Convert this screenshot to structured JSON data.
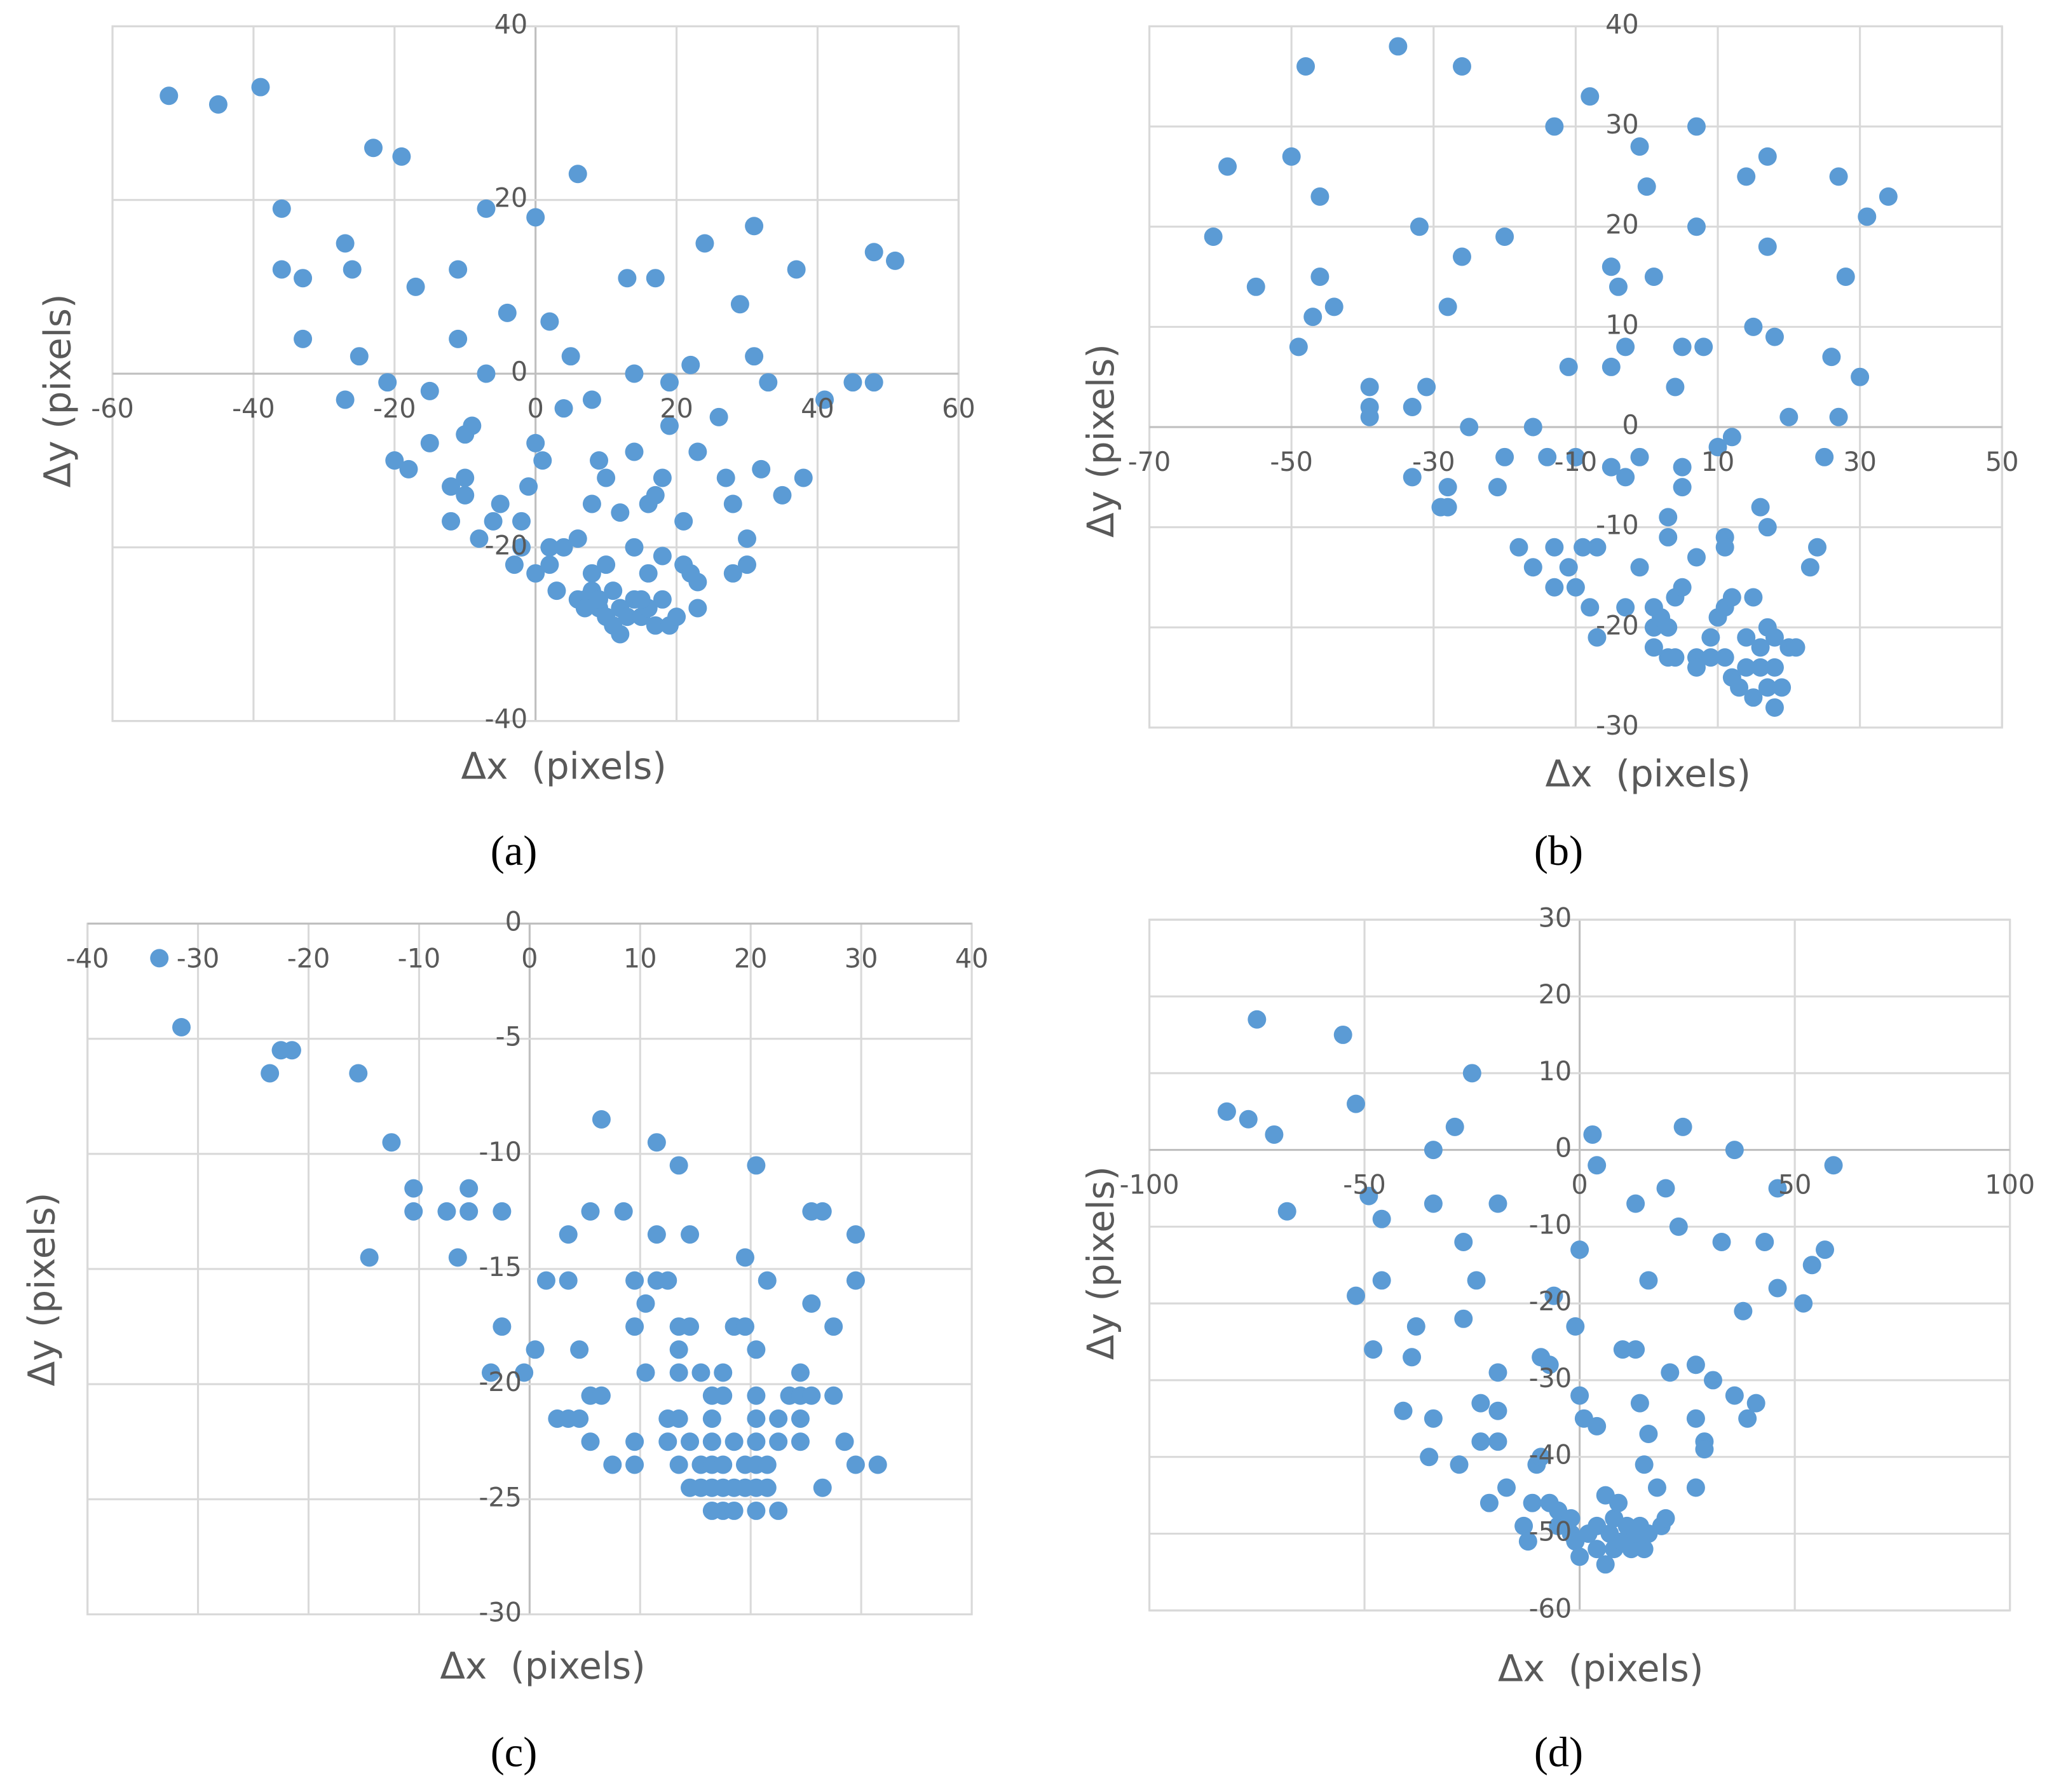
{
  "chart_data": [
    {
      "type": "scatter",
      "label": "(a)",
      "x_label": "Δx  (pixels)",
      "y_label": "Δy (pixels)",
      "color": "#5b9bd5",
      "grid": true,
      "xlim": [
        -60,
        60
      ],
      "xticks": [
        -60,
        -40,
        -20,
        0,
        20,
        40,
        60
      ],
      "ylim": [
        -40,
        40
      ],
      "yticks": [
        -40,
        -20,
        0,
        20,
        40
      ],
      "x": [
        -52,
        -45,
        -39,
        -36,
        -36,
        -33,
        -33,
        -27,
        -26,
        -25,
        -27,
        -23,
        -19,
        -17,
        -21,
        -15,
        -20,
        -18,
        -15,
        -11,
        -11,
        -7,
        -4,
        -7,
        -9,
        -10,
        -12,
        -10,
        -10,
        -12,
        -5,
        -6,
        -8,
        -3,
        -2,
        -1,
        -2,
        0,
        2,
        5,
        6,
        0,
        1,
        4,
        8,
        2,
        0,
        2,
        3,
        4,
        6,
        7,
        8,
        9,
        10,
        8,
        9,
        10,
        12,
        13,
        14,
        17,
        14,
        14,
        16,
        16,
        17,
        18,
        18,
        19,
        19,
        21,
        22,
        21,
        22,
        23,
        23,
        23,
        24,
        26,
        27,
        28,
        28,
        29,
        30,
        30,
        31,
        31,
        33,
        32,
        35,
        37,
        38,
        41,
        45,
        48,
        48,
        51,
        6,
        7,
        8,
        9,
        10,
        11,
        11,
        12,
        12,
        13,
        14,
        15,
        16,
        17,
        18,
        19,
        20,
        15
      ],
      "values": [
        32,
        31,
        33,
        19,
        12,
        11,
        4,
        15,
        12,
        2,
        -3,
        26,
        25,
        10,
        -1,
        -2,
        -10,
        -11,
        -8,
        12,
        4,
        19,
        7,
        0,
        -6,
        -7,
        -13,
        -12,
        -14,
        -17,
        -15,
        -17,
        -19,
        -22,
        -17,
        -13,
        -20,
        18,
        6,
        2,
        23,
        -8,
        -10,
        -4,
        -3,
        -20,
        -23,
        -22,
        -25,
        -20,
        -19,
        -26,
        -15,
        -10,
        -12,
        -23,
        -27,
        -22,
        -16,
        11,
        -9,
        11,
        0,
        -20,
        -23,
        -15,
        -14,
        -12,
        -21,
        -1,
        -6,
        -17,
        1,
        -22,
        -23,
        -9,
        -24,
        -27,
        15,
        -5,
        -12,
        -15,
        -23,
        8,
        -19,
        -22,
        2,
        17,
        -1,
        -11,
        -14,
        12,
        -12,
        -3,
        -1,
        -1,
        14,
        13,
        -26,
        -27,
        -25,
        -26,
        -28,
        -25,
        -29,
        -27,
        -30,
        -28,
        -26,
        -28,
        -27,
        -29,
        -26,
        -29,
        -28,
        -26
      ]
    },
    {
      "type": "scatter",
      "label": "(b)",
      "x_label": "Δx  (pixels)",
      "y_label": "Δy (pixels)",
      "color": "#5b9bd5",
      "grid": true,
      "xlim": [
        -70,
        50
      ],
      "xticks": [
        -70,
        -50,
        -30,
        -10,
        10,
        30,
        50
      ],
      "ylim": [
        -30,
        40
      ],
      "yticks": [
        -30,
        -20,
        -10,
        0,
        10,
        20,
        30,
        40
      ],
      "x": [
        -61,
        -59,
        -55,
        -50,
        -48,
        -49,
        -47,
        -46,
        -46,
        -44,
        -39,
        -39,
        -39,
        -35,
        -33,
        -33,
        -32,
        -31,
        -29,
        -28,
        -28,
        -28,
        -26,
        -26,
        -25,
        -21,
        -20,
        -20,
        -18,
        -16,
        -16,
        -14,
        -13,
        -13,
        -13,
        -11,
        -11,
        -10,
        -10,
        -9,
        -8,
        -7,
        -8,
        -7,
        -5,
        -5,
        -4,
        -5,
        -3,
        -3,
        -3,
        -1,
        -1,
        -1,
        0,
        1,
        1,
        1,
        1,
        2,
        3,
        3,
        3,
        3,
        4,
        4,
        5,
        5,
        5,
        5,
        4,
        7,
        7,
        7,
        7,
        7,
        8,
        9,
        9,
        10,
        10,
        11,
        11,
        11,
        11,
        12,
        12,
        12,
        13,
        14,
        14,
        14,
        15,
        15,
        15,
        16,
        16,
        16,
        17,
        17,
        17,
        17,
        17,
        18,
        18,
        18,
        18,
        19,
        20,
        20,
        21,
        23,
        24,
        25,
        26,
        27,
        27,
        28,
        30,
        31,
        34
      ],
      "values": [
        19,
        26,
        14,
        27,
        36,
        8,
        11,
        23,
        15,
        12,
        4,
        2,
        1,
        38,
        2,
        -5,
        20,
        4,
        -8,
        -8,
        -6,
        12,
        36,
        17,
        0,
        -6,
        -3,
        19,
        -12,
        0,
        -14,
        -3,
        -12,
        -16,
        30,
        6,
        -14,
        -3,
        -16,
        -12,
        33,
        -12,
        -18,
        -21,
        16,
        6,
        14,
        -4,
        8,
        -5,
        -18,
        28,
        -3,
        -14,
        24,
        15,
        -18,
        -20,
        -22,
        -19,
        -9,
        -11,
        -20,
        -23,
        4,
        -17,
        -16,
        8,
        -6,
        -4,
        -23,
        30,
        20,
        -13,
        -23,
        -24,
        8,
        -23,
        -21,
        -2,
        -19,
        -11,
        -12,
        -18,
        -23,
        -1,
        -17,
        -25,
        -26,
        25,
        -24,
        -21,
        10,
        -17,
        -27,
        -24,
        -22,
        -8,
        27,
        18,
        -10,
        -20,
        -26,
        9,
        -21,
        -24,
        -28,
        -26,
        1,
        -22,
        -22,
        -14,
        -12,
        -3,
        7,
        25,
        1,
        15,
        5,
        21,
        23
      ]
    },
    {
      "type": "scatter",
      "label": "(c)",
      "x_label": "Δx  (pixels)",
      "y_label": "Δy (pixels)",
      "color": "#5b9bd5",
      "grid": true,
      "xlim": [
        -40,
        40
      ],
      "xticks": [
        -40,
        -30,
        -20,
        -10,
        0,
        10,
        20,
        30,
        40
      ],
      "ylim": [
        -30,
        0
      ],
      "yticks": [
        -30,
        -25,
        -20,
        -15,
        -10,
        -5,
        0
      ],
      "x": [
        -33.5,
        -31.5,
        -23.5,
        -22.5,
        -21.5,
        -15.5,
        -14.5,
        -12.5,
        -10.5,
        -10.5,
        -7.5,
        -6.5,
        -5.5,
        -5.5,
        -2.5,
        -2.5,
        -3.5,
        -0.5,
        0.5,
        1.5,
        2.5,
        3.5,
        3.5,
        3.5,
        4.5,
        4.5,
        5.5,
        5.5,
        5.5,
        6.5,
        6.5,
        7.5,
        8.5,
        9.5,
        9.5,
        9.5,
        9.5,
        10.5,
        10.5,
        11.5,
        11.5,
        11.5,
        12.5,
        12.5,
        12.5,
        13.5,
        13.5,
        13.5,
        13.5,
        13.5,
        13.5,
        14.5,
        14.5,
        14.5,
        14.5,
        15.5,
        15.5,
        15.5,
        16.5,
        16.5,
        16.5,
        16.5,
        16.5,
        16.5,
        17.5,
        17.5,
        17.5,
        17.5,
        17.5,
        18.5,
        18.5,
        18.5,
        18.5,
        19.5,
        19.5,
        19.5,
        19.5,
        20.5,
        20.5,
        20.5,
        20.5,
        20.5,
        20.5,
        20.5,
        20.5,
        21.5,
        21.5,
        21.5,
        22.5,
        22.5,
        22.5,
        23.5,
        24.5,
        24.5,
        24.5,
        24.5,
        25.5,
        25.5,
        25.5,
        26.5,
        26.5,
        27.5,
        27.5,
        28.5,
        29.5,
        29.5,
        29.5,
        31.5
      ],
      "values": [
        -1.5,
        -4.5,
        -6.5,
        -5.5,
        -5.5,
        -6.5,
        -14.5,
        -9.5,
        -11.5,
        -12.5,
        -12.5,
        -14.5,
        -11.5,
        -12.5,
        -12.5,
        -17.5,
        -19.5,
        -19.5,
        -18.5,
        -15.5,
        -21.5,
        -13.5,
        -15.5,
        -21.5,
        -18.5,
        -21.5,
        -12.5,
        -20.5,
        -22.5,
        -8.5,
        -20.5,
        -23.5,
        -12.5,
        -15.5,
        -17.5,
        -22.5,
        -23.5,
        -16.5,
        -19.5,
        -9.5,
        -13.5,
        -15.5,
        -15.5,
        -21.5,
        -22.5,
        -10.5,
        -17.5,
        -18.5,
        -19.5,
        -21.5,
        -23.5,
        -13.5,
        -17.5,
        -22.5,
        -24.5,
        -19.5,
        -23.5,
        -24.5,
        -20.5,
        -21.5,
        -22.5,
        -23.5,
        -24.5,
        -25.5,
        -19.5,
        -20.5,
        -23.5,
        -24.5,
        -25.5,
        -17.5,
        -22.5,
        -24.5,
        -25.5,
        -14.5,
        -17.5,
        -23.5,
        -24.5,
        -10.5,
        -18.5,
        -20.5,
        -21.5,
        -22.5,
        -23.5,
        -24.5,
        -25.5,
        -15.5,
        -23.5,
        -24.5,
        -21.5,
        -22.5,
        -25.5,
        -20.5,
        -19.5,
        -20.5,
        -21.5,
        -22.5,
        -12.5,
        -16.5,
        -20.5,
        -12.5,
        -24.5,
        -17.5,
        -20.5,
        -22.5,
        -13.5,
        -15.5,
        -23.5,
        -23.5
      ]
    },
    {
      "type": "scatter",
      "label": "(d)",
      "x_label": "Δx  (pixels)",
      "y_label": "Δy (pixels)",
      "color": "#5b9bd5",
      "grid": true,
      "xlim": [
        -100,
        100
      ],
      "xticks": [
        -100,
        -50,
        0,
        50,
        100
      ],
      "ylim": [
        -60,
        30
      ],
      "yticks": [
        -60,
        -50,
        -40,
        -30,
        -20,
        -10,
        0,
        10,
        20,
        30
      ],
      "x": [
        -82,
        -77,
        -75,
        -71,
        -68,
        -55,
        -52,
        -52,
        -49,
        -46,
        -46,
        -48,
        -41,
        -38,
        -39,
        -34,
        -34,
        -34,
        -35,
        -29,
        -28,
        -27,
        -27,
        -25,
        -24,
        -23,
        -23,
        -21,
        -19,
        -19,
        -19,
        -19,
        -17,
        -13,
        -12,
        -11,
        -10,
        -9,
        -9,
        -7,
        -7,
        -6,
        -5,
        -5,
        -2,
        -2,
        -1,
        0,
        0,
        -1,
        0,
        1,
        2,
        3,
        4,
        4,
        4,
        4,
        6,
        6,
        7,
        8,
        8,
        9,
        10,
        10,
        11,
        12,
        13,
        13,
        13,
        14,
        14,
        15,
        15,
        16,
        16,
        16,
        18,
        19,
        20,
        20,
        21,
        23,
        24,
        27,
        27,
        27,
        29,
        29,
        31,
        33,
        36,
        36,
        38,
        39,
        41,
        43,
        46,
        46,
        52,
        54,
        57,
        59
      ],
      "values": [
        5,
        4,
        17,
        2,
        -8,
        15,
        6,
        -19,
        -6,
        -9,
        -17,
        -26,
        -34,
        -23,
        -27,
        0,
        -7,
        -35,
        -40,
        3,
        -41,
        -12,
        -22,
        10,
        -17,
        -33,
        -38,
        -46,
        -7,
        -29,
        -34,
        -38,
        -44,
        -49,
        -51,
        -46,
        -41,
        -27,
        -40,
        -46,
        -28,
        -19,
        -49,
        -47,
        -48,
        -50,
        -23,
        -13,
        -32,
        -51,
        -53,
        -35,
        -50,
        2,
        -2,
        -36,
        -49,
        -52,
        -45,
        -54,
        -50,
        -48,
        -52,
        -46,
        -26,
        -51,
        -49,
        -52,
        -7,
        -26,
        -50,
        -33,
        -49,
        -52,
        -41,
        -17,
        -37,
        -50,
        -44,
        -49,
        -5,
        -48,
        -29,
        -10,
        3,
        -44,
        -28,
        -35,
        -38,
        -39,
        -30,
        -12,
        0,
        -32,
        -21,
        -35,
        -33,
        -12,
        -18,
        -5,
        -20,
        -15,
        -13,
        -2
      ]
    }
  ]
}
